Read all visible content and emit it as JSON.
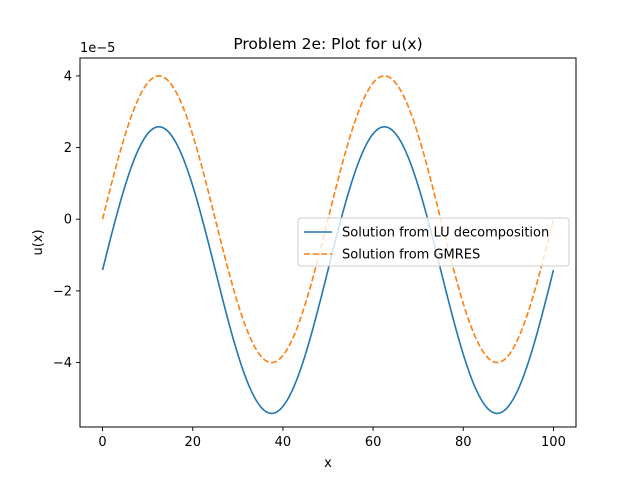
{
  "chart_data": {
    "type": "line",
    "title": "Problem 2e: Plot for u(x)",
    "xlabel": "x",
    "ylabel": "u(x)",
    "y_offset_label": "1e−5",
    "xlim": [
      -5,
      105
    ],
    "ylim": [
      -5.8,
      4.5
    ],
    "y_scale_factor": 1e-05,
    "xticks": [
      0,
      20,
      40,
      60,
      80,
      100
    ],
    "xtick_labels": [
      "0",
      "20",
      "40",
      "60",
      "80",
      "100"
    ],
    "yticks": [
      -4,
      -2,
      0,
      2,
      4
    ],
    "ytick_labels": [
      "−4",
      "−2",
      "0",
      "2",
      "4"
    ],
    "grid": false,
    "legend_position": "center-right",
    "series": [
      {
        "name": "Solution from LU decomposition",
        "color": "#1f77b4",
        "style": "solid",
        "x": [
          0,
          5,
          10,
          12.5,
          15,
          20,
          25,
          30,
          35,
          37.5,
          40,
          45,
          50,
          55,
          60,
          62.5,
          65,
          70,
          75,
          80,
          85,
          87.5,
          90,
          95,
          100
        ],
        "y": [
          -1.42,
          1.07,
          2.42,
          2.58,
          2.42,
          1.07,
          -1.42,
          -3.92,
          -5.27,
          -5.42,
          -5.27,
          -3.92,
          -1.42,
          1.07,
          2.42,
          2.58,
          2.42,
          1.07,
          -1.42,
          -3.92,
          -5.27,
          -5.42,
          -5.27,
          -3.92,
          -1.42
        ]
      },
      {
        "name": "Solution from GMRES",
        "color": "#ff7f0e",
        "style": "dashed",
        "x": [
          0,
          5,
          10,
          12.5,
          15,
          20,
          25,
          30,
          35,
          37.5,
          40,
          45,
          50,
          55,
          60,
          62.5,
          65,
          70,
          75,
          80,
          85,
          87.5,
          90,
          95,
          100
        ],
        "y": [
          0,
          2.5,
          3.85,
          4.0,
          3.85,
          2.5,
          0,
          -2.5,
          -3.85,
          -4.0,
          -3.85,
          -2.5,
          0,
          2.5,
          3.85,
          4.0,
          3.85,
          2.5,
          0,
          -2.5,
          -3.85,
          -4.0,
          -3.85,
          -2.5,
          0
        ]
      }
    ]
  }
}
